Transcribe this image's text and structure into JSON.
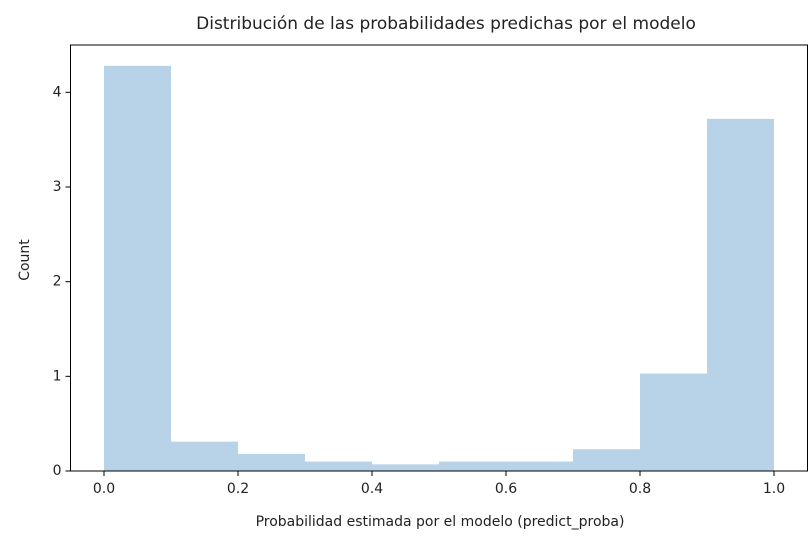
{
  "chart_data": {
    "type": "histogram",
    "title": "Distribución de las probabilidades predichas por el modelo",
    "xlabel": "Probabilidad estimada por el modelo (predict_proba)",
    "ylabel": "Count",
    "bins": [
      0,
      0.1,
      0.2,
      0.3,
      0.4,
      0.5,
      0.6,
      0.7,
      0.8,
      0.9,
      1
    ],
    "values": [
      4.28,
      0.31,
      0.18,
      0.1,
      0.07,
      0.1,
      0.1,
      0.23,
      1.03,
      3.72
    ],
    "color": "#b8d3e8",
    "xlim": [
      -0.05,
      1.05
    ],
    "ylim": [
      0,
      4.5
    ],
    "xticks": [
      {
        "value": 0,
        "label": "0.0"
      },
      0.2,
      0.4,
      0.6,
      0.8,
      {
        "value": 1,
        "label": "1.0"
      }
    ],
    "yticks": [
      0,
      1,
      2,
      3,
      4
    ]
  }
}
